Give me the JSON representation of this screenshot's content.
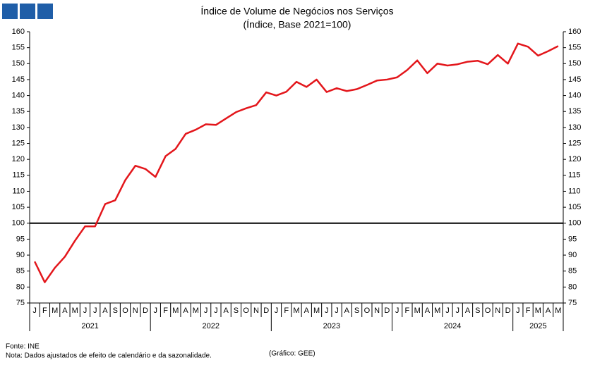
{
  "chart_data": {
    "type": "line",
    "title": "Índice de Volume de Negócios nos Serviços",
    "subtitle": "(Índice, Base 2021=100)",
    "categories": [
      "J",
      "F",
      "M",
      "A",
      "M",
      "J",
      "J",
      "A",
      "S",
      "O",
      "N",
      "D",
      "J",
      "F",
      "M",
      "A",
      "M",
      "J",
      "J",
      "A",
      "S",
      "O",
      "N",
      "D",
      "J",
      "F",
      "M",
      "A",
      "M",
      "J",
      "J",
      "A",
      "S",
      "O",
      "N",
      "D",
      "J",
      "F",
      "M",
      "A",
      "M",
      "J",
      "J",
      "A",
      "S",
      "O",
      "N",
      "D",
      "J",
      "F",
      "M",
      "A",
      "M"
    ],
    "year_labels": [
      "2021",
      "2022",
      "2023",
      "2024",
      "2025"
    ],
    "series": [
      {
        "color": "#e3161b",
        "values": [
          88,
          81.5,
          86,
          89.5,
          94.5,
          99,
          99,
          106,
          107.2,
          113.5,
          118,
          117,
          114.5,
          121,
          123.3,
          128,
          129.3,
          131,
          130.8,
          132.8,
          134.8,
          136,
          137,
          141,
          140,
          141.2,
          144.3,
          142.7,
          145,
          141.1,
          142.3,
          141.4,
          142,
          143.3,
          144.7,
          145,
          145.7,
          148,
          151,
          147,
          150,
          149.4,
          149.8,
          150.6,
          150.9,
          149.8,
          152.7,
          150,
          156.3,
          155.3,
          152.5,
          153.9,
          155.5
        ]
      }
    ],
    "reference_line": 100,
    "ylim": [
      75,
      160
    ],
    "yticks": [
      75,
      80,
      85,
      90,
      95,
      100,
      105,
      110,
      115,
      120,
      125,
      130,
      135,
      140,
      145,
      150,
      155,
      160
    ],
    "y2lim": [
      75,
      160
    ],
    "y2ticks": [
      75,
      80,
      85,
      90,
      95,
      100,
      105,
      110,
      115,
      120,
      125,
      130,
      135,
      140,
      145,
      150,
      155,
      160
    ],
    "source": "Fonte: INE",
    "note": "Nota: Dados ajustados de efeito de calendário e da sazonalidade.",
    "credit": "(Gráfico: GEE)"
  }
}
